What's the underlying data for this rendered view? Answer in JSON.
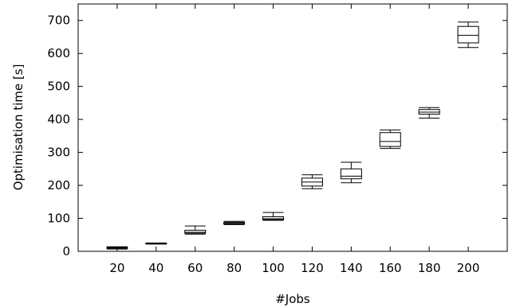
{
  "chart_data": {
    "type": "boxplot",
    "xlabel": "#Jobs",
    "ylabel": "Optimisation time [s]",
    "ylim": [
      0,
      750
    ],
    "yticks": [
      0,
      100,
      200,
      300,
      400,
      500,
      600,
      700
    ],
    "categories": [
      "20",
      "40",
      "60",
      "80",
      "100",
      "120",
      "140",
      "160",
      "180",
      "200"
    ],
    "boxes": [
      {
        "min": 7,
        "q1": 9,
        "median": 10,
        "q3": 12,
        "max": 14
      },
      {
        "min": 22,
        "q1": 23,
        "median": 24,
        "q3": 25,
        "max": 25
      },
      {
        "min": 52,
        "q1": 55,
        "median": 58,
        "q3": 64,
        "max": 77
      },
      {
        "min": 81,
        "q1": 83,
        "median": 85,
        "q3": 88,
        "max": 91
      },
      {
        "min": 94,
        "q1": 96,
        "median": 99,
        "q3": 105,
        "max": 118
      },
      {
        "min": 190,
        "q1": 198,
        "median": 210,
        "q3": 222,
        "max": 232
      },
      {
        "min": 208,
        "q1": 220,
        "median": 228,
        "q3": 250,
        "max": 270
      },
      {
        "min": 312,
        "q1": 318,
        "median": 333,
        "q3": 360,
        "max": 368
      },
      {
        "min": 404,
        "q1": 416,
        "median": 422,
        "q3": 430,
        "max": 436
      },
      {
        "min": 618,
        "q1": 632,
        "median": 655,
        "q3": 682,
        "max": 695
      }
    ],
    "grid": false,
    "legend": "none"
  }
}
